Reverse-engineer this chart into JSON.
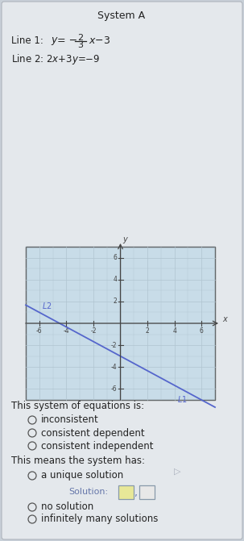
{
  "title": "System A",
  "line1_slope": -0.6667,
  "line1_intercept": -3,
  "line_color": "#5566cc",
  "L1_label": "L1",
  "L2_label": "L2",
  "graph_bg": "#c8dce8",
  "graph_xlim": [
    -7,
    7
  ],
  "graph_ylim": [
    -7,
    7
  ],
  "graph_xticks": [
    -6,
    -4,
    -2,
    2,
    4,
    6
  ],
  "graph_yticks": [
    -6,
    -4,
    -2,
    2,
    4,
    6
  ],
  "section1_text": "This system of equations is:",
  "radio_options_1": [
    "inconsistent",
    "consistent dependent",
    "consistent independent"
  ],
  "section2_text": "This means the system has:",
  "radio_options_2": [
    "a unique solution",
    "no solution",
    "infinitely many solutions"
  ],
  "solution_label": "Solution:",
  "page_bg": "#c8d0d8",
  "panel_bg": "#e4e8ec",
  "text_color": "#222222",
  "radio_color": "#555555",
  "sol_text_color": "#6677aa",
  "box1_fill": "#e8e898",
  "box2_fill": "#e8e8e8",
  "box_edge": "#8899aa",
  "grid_color": "#b0c4d0",
  "axis_color": "#444444"
}
